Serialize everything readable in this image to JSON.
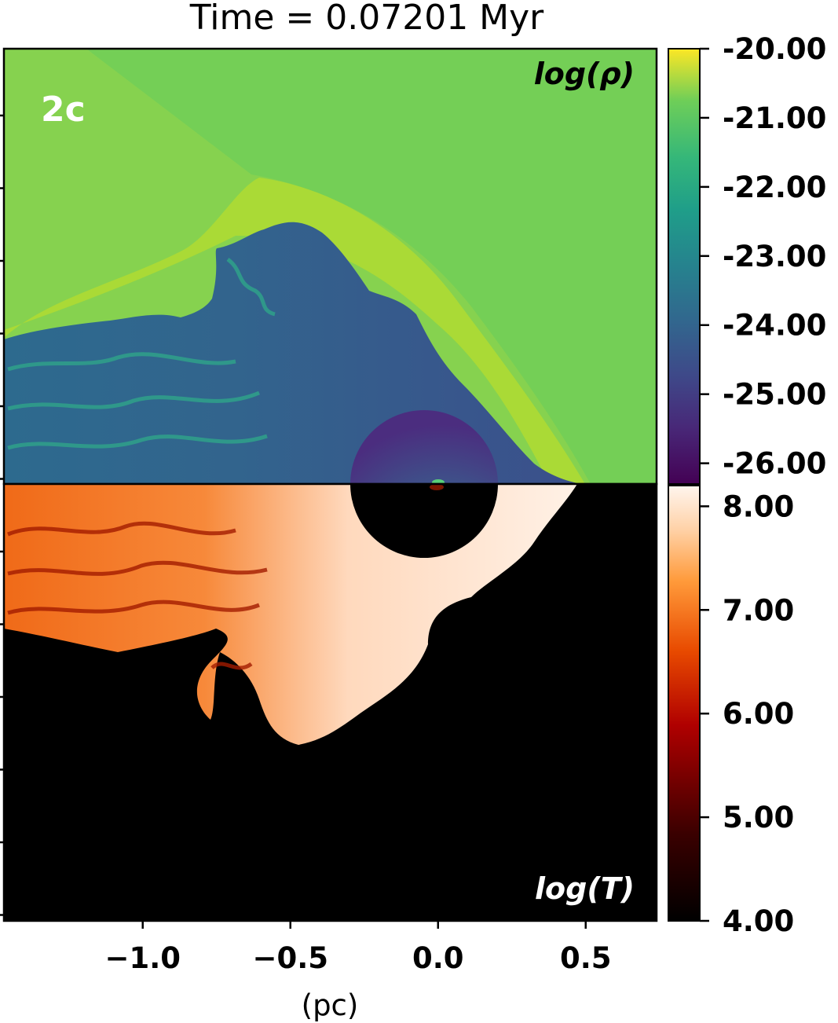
{
  "title": "Time = 0.07201 Myr",
  "panel_tag": "2c",
  "chart_data": {
    "type": "heatmap",
    "xlabel": "(pc)",
    "x_ticks": [
      -1.0,
      -0.5,
      0.0,
      0.5
    ],
    "x_tick_labels": [
      "−1.0",
      "−0.5",
      "0.0",
      "0.5"
    ],
    "xlim": [
      -1.47,
      0.74
    ],
    "panels": [
      {
        "quantity": "density",
        "label": "log(ρ)",
        "colormap": "viridis",
        "colorbar_range": [
          -26.3,
          -20.0
        ],
        "colorbar_ticks": [
          -20.0,
          -21.0,
          -22.0,
          -23.0,
          -24.0,
          -25.0,
          -26.0
        ],
        "colorbar_tick_labels": [
          "-20.00",
          "-21.00",
          "-22.00",
          "-23.00",
          "-24.00",
          "-25.00",
          "-26.00"
        ],
        "ambient_value": -21.2,
        "bubble_value": -25.0
      },
      {
        "quantity": "temperature",
        "label": "log(T)",
        "colormap": "gist_heat",
        "colorbar_range": [
          4.0,
          8.2
        ],
        "colorbar_ticks": [
          8.0,
          7.0,
          6.0,
          5.0,
          4.0
        ],
        "colorbar_tick_labels": [
          "8.00",
          "7.00",
          "6.00",
          "5.00",
          "4.00"
        ],
        "ambient_value": 4.0,
        "bubble_value": 7.8
      }
    ]
  }
}
